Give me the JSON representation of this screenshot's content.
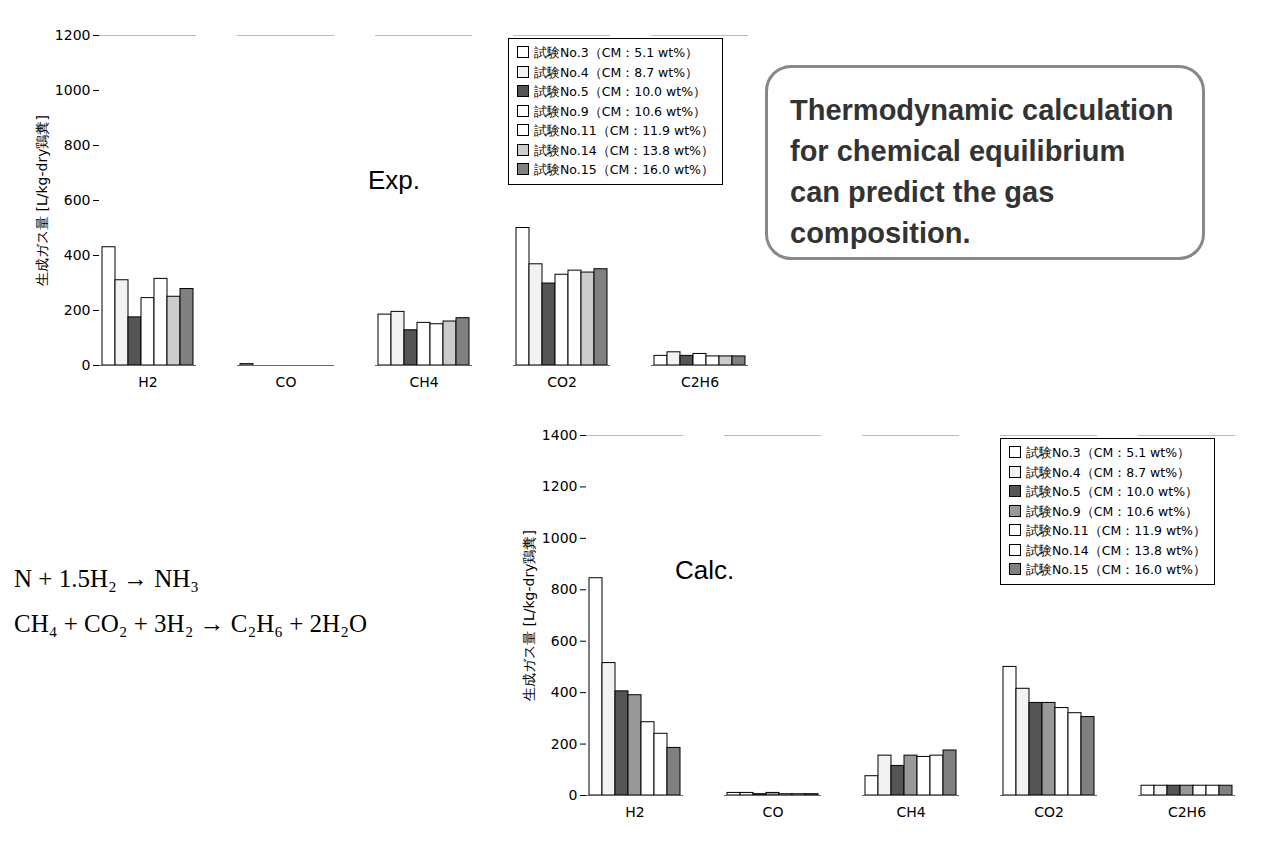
{
  "chart_data": [
    {
      "type": "bar",
      "title": "Exp.",
      "y_label": "生成ガス量 [L/kg-dry鶏糞]",
      "categories": [
        "H2",
        "CO",
        "CH4",
        "CO2",
        "C2H6"
      ],
      "series": [
        {
          "name": "試験No.3（CM：5.1 wt%）",
          "color": "#ffffff",
          "values": [
            430,
            5,
            185,
            500,
            35
          ]
        },
        {
          "name": "試験No.4（CM：8.7 wt%）",
          "color": "#f2f2f2",
          "values": [
            310,
            0,
            195,
            368,
            48
          ]
        },
        {
          "name": "試験No.5（CM：10.0 wt%）",
          "color": "#555555",
          "values": [
            175,
            0,
            128,
            298,
            35
          ]
        },
        {
          "name": "試験No.9（CM：10.6 wt%）",
          "color": "#ffffff",
          "values": [
            245,
            0,
            155,
            330,
            42
          ]
        },
        {
          "name": "試験No.11（CM：11.9 wt%）",
          "color": "#ffffff",
          "values": [
            315,
            0,
            150,
            345,
            33
          ]
        },
        {
          "name": "試験No.14（CM：13.8 wt%）",
          "color": "#cccccc",
          "values": [
            250,
            0,
            160,
            338,
            33
          ]
        },
        {
          "name": "試験No.15（CM：16.0 wt%）",
          "color": "#808080",
          "values": [
            278,
            0,
            172,
            350,
            33
          ]
        }
      ],
      "ylim": [
        0,
        1200
      ],
      "yticks": [
        0,
        200,
        400,
        600,
        800,
        1000,
        1200
      ],
      "legend": "upper right",
      "annotations": [
        "Thermodynamic calculation for chemical equilibrium can predict the gas composition."
      ]
    },
    {
      "type": "bar",
      "title": "Calc.",
      "y_label": "生成ガス量 [L/kg-dry鶏糞]",
      "categories": [
        "H2",
        "CO",
        "CH4",
        "CO2",
        "C2H6"
      ],
      "series": [
        {
          "name": "試験No.3（CM：5.1 wt%）",
          "color": "#ffffff",
          "values": [
            845,
            10,
            75,
            500,
            38
          ]
        },
        {
          "name": "試験No.4（CM：8.7 wt%）",
          "color": "#f2f2f2",
          "values": [
            515,
            10,
            155,
            415,
            38
          ]
        },
        {
          "name": "試験No.5（CM：10.0 wt%）",
          "color": "#555555",
          "values": [
            405,
            5,
            115,
            360,
            38
          ]
        },
        {
          "name": "試験No.9（CM：10.6 wt%）",
          "color": "#999999",
          "values": [
            390,
            10,
            155,
            360,
            38
          ]
        },
        {
          "name": "試験No.11（CM：11.9 wt%）",
          "color": "#ffffff",
          "values": [
            285,
            5,
            150,
            340,
            38
          ]
        },
        {
          "name": "試験No.14（CM：13.8 wt%）",
          "color": "#ffffff",
          "values": [
            240,
            5,
            155,
            320,
            38
          ]
        },
        {
          "name": "試験No.15（CM：16.0 wt%）",
          "color": "#808080",
          "values": [
            185,
            5,
            175,
            305,
            38
          ]
        }
      ],
      "ylim": [
        0,
        1400
      ],
      "yticks": [
        0,
        200,
        400,
        600,
        800,
        1000,
        1200,
        1400
      ],
      "legend": "upper right",
      "annotations": [
        "N + 1.5H₂ → NH₃",
        "CH₄ + CO₂ + 3H₂ → C₂H₆ + 2H₂O"
      ]
    }
  ]
}
